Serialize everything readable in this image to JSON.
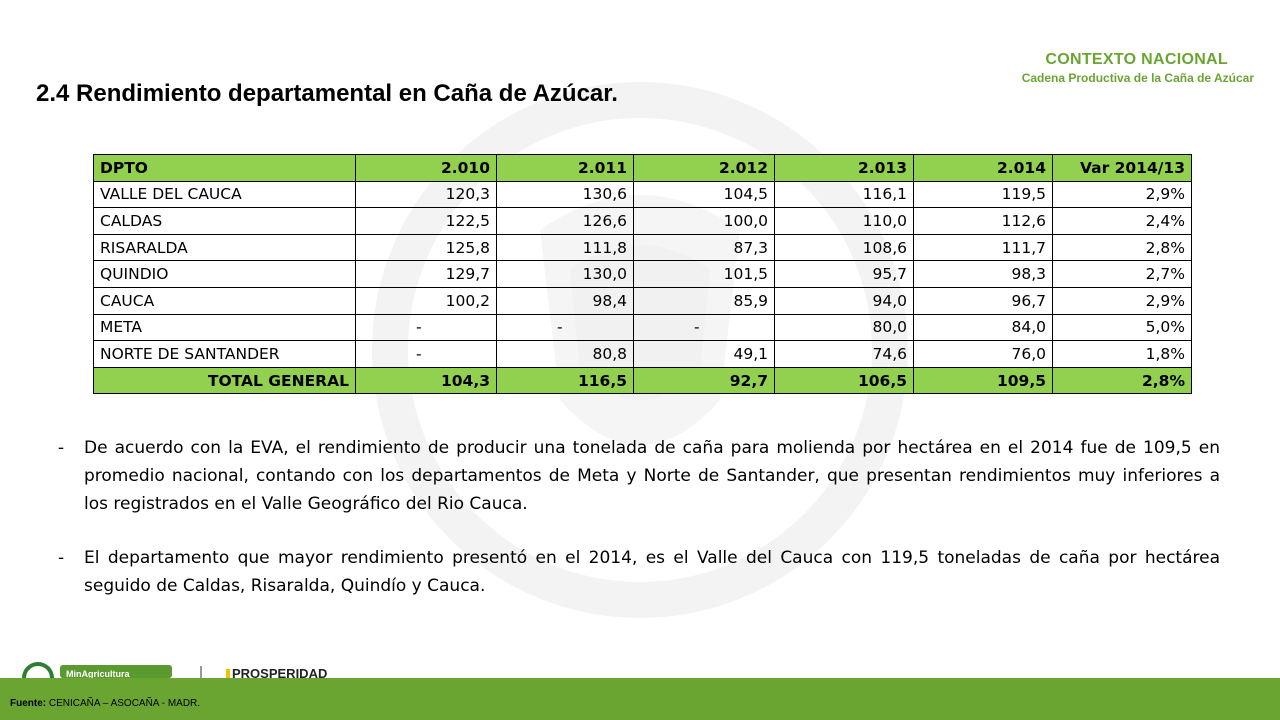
{
  "header": {
    "context_title": "CONTEXTO NACIONAL",
    "context_subtitle": "Cadena Productiva de la Caña de Azúcar"
  },
  "title": "2.4  Rendimiento departamental en Caña de Azúcar.",
  "table": {
    "headers": [
      "DPTO",
      "2.010",
      "2.011",
      "2.012",
      "2.013",
      "2.014",
      "Var 2014/13"
    ],
    "rows": [
      [
        "VALLE DEL CAUCA",
        "120,3",
        "130,6",
        "104,5",
        "116,1",
        "119,5",
        "2,9%"
      ],
      [
        "CALDAS",
        "122,5",
        "126,6",
        "100,0",
        "110,0",
        "112,6",
        "2,4%"
      ],
      [
        "RISARALDA",
        "125,8",
        "111,8",
        "87,3",
        "108,6",
        "111,7",
        "2,8%"
      ],
      [
        "QUINDIO",
        "129,7",
        "130,0",
        "101,5",
        "95,7",
        "98,3",
        "2,7%"
      ],
      [
        "CAUCA",
        "100,2",
        "98,4",
        "85,9",
        "94,0",
        "96,7",
        "2,9%"
      ],
      [
        "META",
        "-",
        "-",
        "-",
        "80,0",
        "84,0",
        "5,0%"
      ],
      [
        "NORTE DE SANTANDER",
        "-",
        "80,8",
        "49,1",
        "74,6",
        "76,0",
        "1,8%"
      ]
    ],
    "total": [
      "TOTAL GENERAL",
      "104,3",
      "116,5",
      "92,7",
      "106,5",
      "109,5",
      "2,8%"
    ]
  },
  "bullets": [
    {
      "dash": "-",
      "text": "De acuerdo con la EVA, el rendimiento de producir una tonelada de caña para molienda por hectárea en el 2014 fue de 109,5 en promedio nacional, contando con los departamentos de Meta y Norte de Santander, que presentan rendimientos muy inferiores a los registrados en el Valle Geográfico del Rio Cauca."
    },
    {
      "dash": "-",
      "text": "El departamento que mayor rendimiento presentó en el 2014, es el Valle del Cauca con 119,5 toneladas de caña por hectárea seguido de Caldas, Risaralda, Quindío y Cauca."
    }
  ],
  "footer": {
    "source_label": "Fuente:",
    "source_text": " CENICAÑA – ASOCAÑA  -  MADR.",
    "logo_minagricultura": "MinAgricultura",
    "logo_prosperidad": "PROSPERIDAD"
  },
  "colors": {
    "accent_green": "#6aa532",
    "table_header_green": "#92d050"
  }
}
